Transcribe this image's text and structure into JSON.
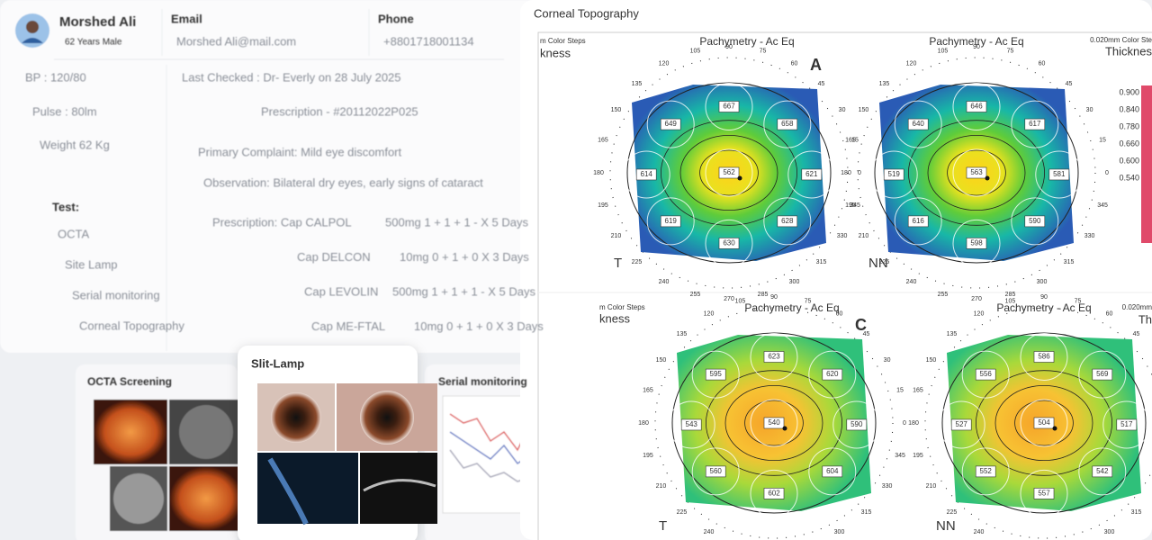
{
  "patient": {
    "name": "Morshed Ali",
    "details": "62 Years Male",
    "email_label": "Email",
    "email": "Morshed Ali@mail.com",
    "phone_label": "Phone",
    "phone": "+8801718001134"
  },
  "vitals": [
    "BP : 120/80",
    "Pulse : 80lm",
    "Weight 62 Kg"
  ],
  "visit": {
    "last_checked": "Last Checked : Dr- Everly on 28 July 2025",
    "prescription_id": "Prescription - #20112022P025",
    "complaint": "Primary Complaint: Mild eye discomfort",
    "observation": "Observation: Bilateral dry eyes, early signs of cataract"
  },
  "tests": {
    "label": "Test:",
    "items": [
      "OCTA",
      "Site Lamp",
      "Serial monitoring",
      "Corneal Topography"
    ]
  },
  "prescription": [
    [
      "Prescription: Cap CALPOL",
      "500mg 1 + 1 + 1 - X 5 Days"
    ],
    [
      "Cap DELCON",
      "10mg 0 + 1 + 0 X 3 Days"
    ],
    [
      "Cap LEVOLIN",
      "500mg 1 + 1 + 1 - X 5 Days"
    ],
    [
      "Cap ME-FTAL",
      "10mg 0 + 1 + 0 X 3 Days"
    ]
  ],
  "cards": [
    "OCTA Screening",
    "Slit-Lamp",
    "Serial monitoring"
  ],
  "topography": {
    "title": "Corneal Topography",
    "side_labels": [
      "m Color Steps",
      "kness",
      "0.020mm Color Ste",
      "Thicknes",
      "m Color Steps",
      "kness",
      "0.020mm",
      "Th"
    ],
    "scale": [
      "0.900",
      "0.840",
      "0.780",
      "0.660",
      "0.600",
      "0.540"
    ],
    "angles": [
      0,
      15,
      30,
      45,
      60,
      75,
      90,
      105,
      120,
      135,
      150,
      165,
      180,
      195,
      210,
      225,
      240,
      255,
      270,
      285,
      300,
      315,
      330,
      345
    ],
    "maps": [
      {
        "title": "Pachymetry - Ac Eq",
        "letter": "A",
        "corner": "T",
        "values": [
          667,
          649,
          658,
          614,
          562,
          621,
          619,
          628,
          630
        ]
      },
      {
        "title": "Pachymetry - Ac Eq",
        "corner": "NN",
        "values": [
          646,
          640,
          617,
          519,
          563,
          581,
          616,
          590,
          598
        ]
      },
      {
        "title": "Pachymetry - Ac Eq",
        "letter": "C",
        "corner": "T",
        "values": [
          623,
          595,
          620,
          543,
          540,
          590,
          560,
          604,
          602
        ]
      },
      {
        "title": "Pachymetry - Ac Eq",
        "corner": "NN",
        "values": [
          586,
          556,
          569,
          527,
          504,
          517,
          552,
          542,
          557
        ]
      }
    ]
  }
}
